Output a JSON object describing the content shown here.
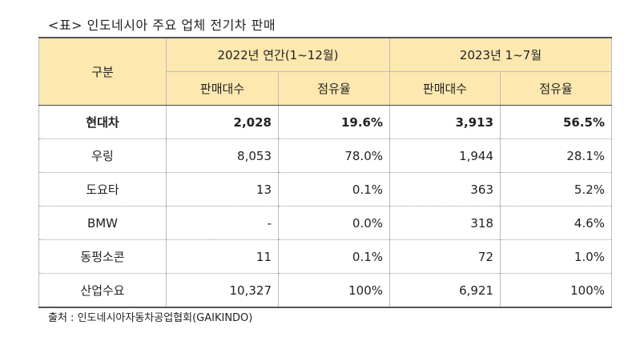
{
  "caption": "<표> 인도네시아 주요 업체 전기차 판매",
  "header": {
    "group_label": "구분",
    "period_2022": "2022년 연간(1~12월)",
    "period_2023": "2023년 1~7월",
    "sales_label": "판매대수",
    "share_label": "점유율"
  },
  "rows": [
    {
      "name": "현대차",
      "sales_2022": "2,028",
      "share_2022": "19.6%",
      "sales_2023": "3,913",
      "share_2023": "56.5%"
    },
    {
      "name": "우링",
      "sales_2022": "8,053",
      "share_2022": "78.0%",
      "sales_2023": "1,944",
      "share_2023": "28.1%"
    },
    {
      "name": "도요타",
      "sales_2022": "13",
      "share_2022": "0.1%",
      "sales_2023": "363",
      "share_2023": "5.2%"
    },
    {
      "name": "BMW",
      "sales_2022": "-",
      "share_2022": "0.0%",
      "sales_2023": "318",
      "share_2023": "4.6%"
    },
    {
      "name": "동펑소콘",
      "sales_2022": "11",
      "share_2022": "0.1%",
      "sales_2023": "72",
      "share_2023": "1.0%"
    },
    {
      "name": "산업수요",
      "sales_2022": "10,327",
      "share_2022": "100%",
      "sales_2023": "6,921",
      "share_2023": "100%"
    }
  ],
  "source": "출처 : 인도네시아자동차공업협회(GAIKINDO)",
  "colors": {
    "header_bg": "#fde8b0"
  }
}
